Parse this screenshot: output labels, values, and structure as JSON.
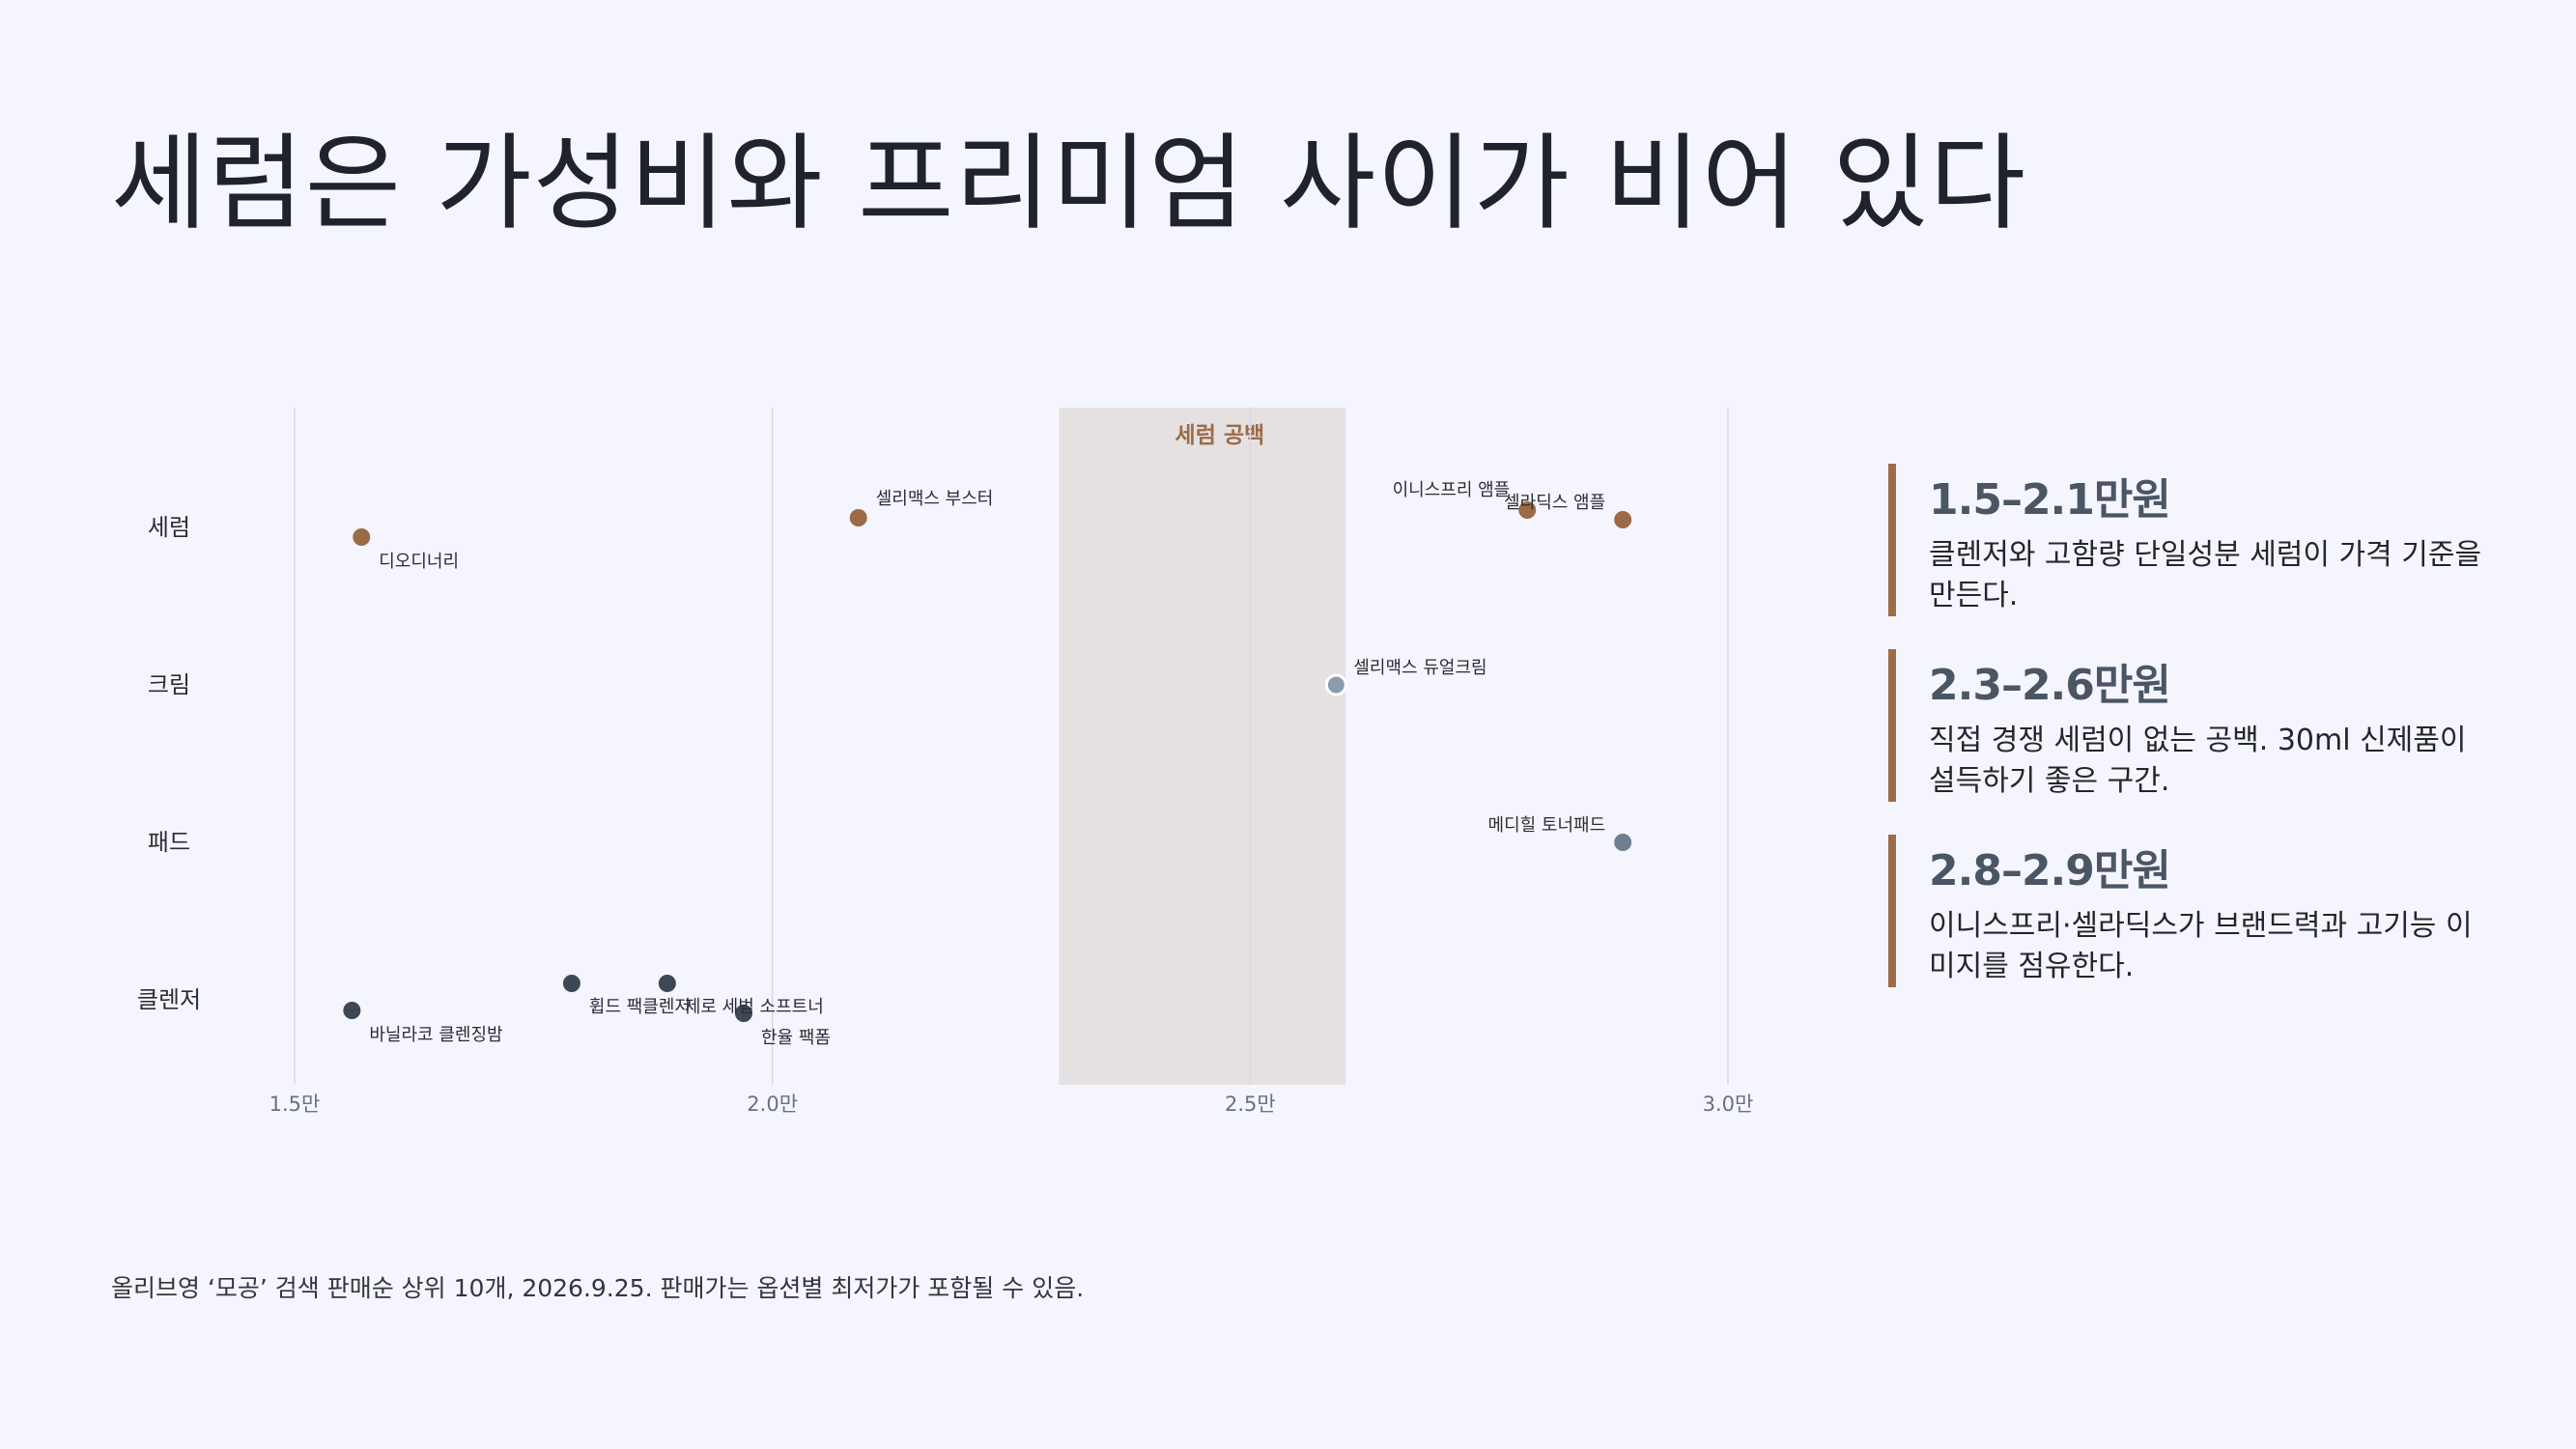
{
  "title": "세럼은 가성비와 프리미엄 사이가 비어 있다",
  "chart_data": {
    "type": "scatter",
    "title": "",
    "xlabel": "",
    "ylabel": "",
    "xlim": [
      1.5,
      3.0
    ],
    "x_ticks": [
      1.5,
      2.0,
      2.5,
      3.0
    ],
    "x_tick_labels": [
      "1.5만",
      "2.0만",
      "2.5만",
      "3.0만"
    ],
    "categories": [
      "세럼",
      "크림",
      "패드",
      "클렌저"
    ],
    "grid": "vertical",
    "highlight_band": {
      "x_range": [
        2.3,
        2.6
      ],
      "label": "세럼 공백",
      "color": "#e5e1e2"
    },
    "points": [
      {
        "category": "세럼",
        "x": 1.57,
        "label": "디오디너리",
        "color": "#9b6b46"
      },
      {
        "category": "세럼",
        "x": 2.09,
        "label": "셀리맥스 부스터",
        "color": "#9b6b46"
      },
      {
        "category": "세럼",
        "x": 2.79,
        "label": "이니스프리 앰플",
        "color": "#9b6b46"
      },
      {
        "category": "세럼",
        "x": 2.89,
        "label": "셀라딕스 앰플",
        "color": "#9b6b46"
      },
      {
        "category": "크림",
        "x": 2.59,
        "label": "셀리맥스 듀얼크림",
        "color": "#8a9bb0"
      },
      {
        "category": "패드",
        "x": 2.89,
        "label": "메디힐 토너패드",
        "color": "#6f7f91"
      },
      {
        "category": "클렌저",
        "x": 1.56,
        "label": "바닐라코 클렌징밤",
        "color": "#3d4854"
      },
      {
        "category": "클렌저",
        "x": 1.79,
        "label": "휩드 팩클렌저",
        "color": "#3d4854"
      },
      {
        "category": "클렌저",
        "x": 1.89,
        "label": "제로 세범 소프트너",
        "color": "#3d4854"
      },
      {
        "category": "클렌저",
        "x": 1.97,
        "label": "한율 팩폼",
        "color": "#3d4854"
      }
    ]
  },
  "cards": [
    {
      "title": "1.5–2.1만원",
      "body": "클렌저와 고함량 단일성분 세럼이 가격 기준을 만든다."
    },
    {
      "title": "2.3–2.6만원",
      "body": "직접 경쟁 세럼이 없는 공백. 30ml 신제품이 설득하기 좋은 구간."
    },
    {
      "title": "2.8–2.9만원",
      "body": "이니스프리·셀라딕스가 브랜드력과 고기능 이미지를 점유한다."
    }
  ],
  "footnote": "올리브영 ‘모공’ 검색 판매순 상위 10개, 2026.9.25. 판매가는 옵션별 최저가가 포함될 수 있음."
}
